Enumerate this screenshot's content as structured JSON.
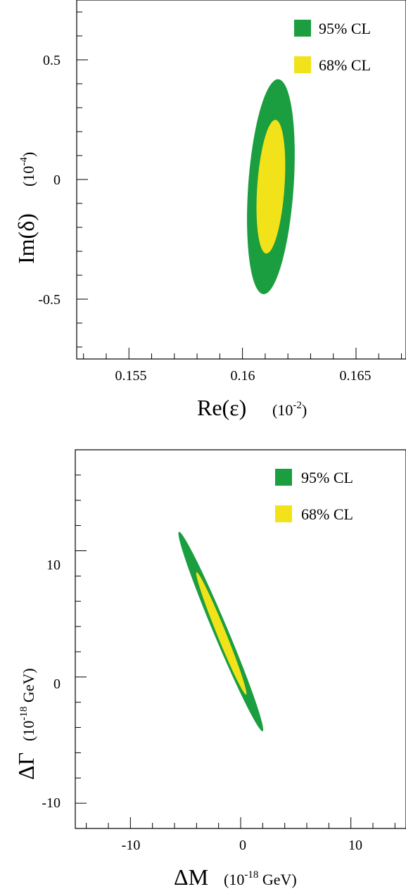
{
  "chart_data": [
    {
      "type": "contour",
      "xlabel": "Re(ε)",
      "xunit": "(10",
      "xunit_exp": "-2",
      "xunit_close": ")",
      "ylabel": "Im(δ)",
      "yunit": "(10",
      "yunit_exp": "-4",
      "yunit_close": ")",
      "xlim": [
        0.1527,
        0.1672
      ],
      "ylim": [
        -0.75,
        0.75
      ],
      "xticks": [
        0.155,
        0.16,
        0.165
      ],
      "xtick_labels": [
        "0.155",
        "0.16",
        "0.165"
      ],
      "yticks": [
        -0.5,
        0,
        0.5
      ],
      "ytick_labels": [
        "-0.5",
        "0",
        "0.5"
      ],
      "legend_position": "top-right",
      "series": [
        {
          "name": "95% CL",
          "color": "#1a9e3f",
          "center": [
            0.16125,
            -0.04
          ],
          "x_range": [
            0.16025,
            0.16225
          ],
          "y_range": [
            -0.48,
            0.42
          ]
        },
        {
          "name": "68% CL",
          "color": "#f2e21a",
          "center": [
            0.16125,
            -0.03
          ],
          "x_range": [
            0.16065,
            0.16185
          ],
          "y_range": [
            -0.31,
            0.25
          ]
        }
      ]
    },
    {
      "type": "contour",
      "xlabel": "ΔM",
      "xunit": "(10",
      "xunit_exp": "-18",
      "xunit_close": " GeV)",
      "ylabel": "ΔΓ",
      "yunit": "(10",
      "yunit_exp": "-18",
      "yunit_close": " GeV)",
      "xlim": [
        -15,
        15
      ],
      "ylim": [
        -12,
        18
      ],
      "xticks": [
        -10,
        0,
        10
      ],
      "xtick_labels": [
        "-10",
        "0",
        "10"
      ],
      "yticks": [
        -10,
        0,
        10
      ],
      "ytick_labels": [
        "-10",
        "0",
        "10"
      ],
      "legend_position": "top-right",
      "series": [
        {
          "name": "95% CL",
          "color": "#1a9e3f",
          "endpoints": [
            [
              -5.6,
              11.5
            ],
            [
              2.0,
              -4.3
            ]
          ],
          "half_width": 0.65
        },
        {
          "name": "68% CL",
          "color": "#f2e21a",
          "endpoints": [
            [
              -4.0,
              8.3
            ],
            [
              0.5,
              -1.4
            ]
          ],
          "half_width": 0.4
        }
      ]
    }
  ]
}
